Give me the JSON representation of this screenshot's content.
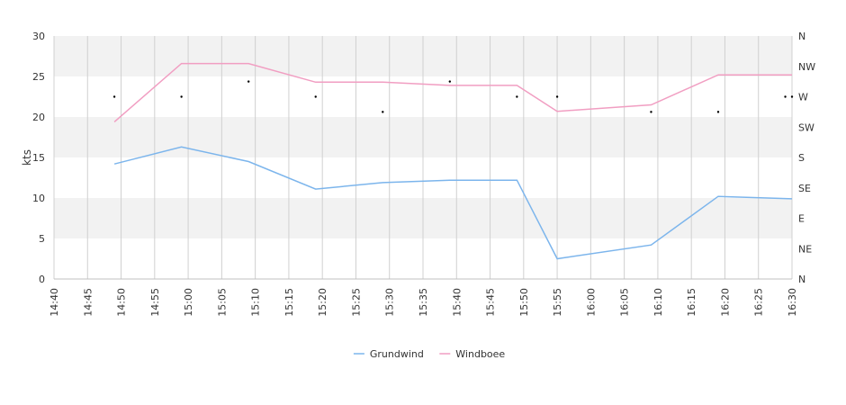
{
  "chart_data": {
    "type": "line",
    "ylabel": "kts",
    "ylim": [
      0,
      30
    ],
    "y_ticks": [
      0,
      5,
      10,
      15,
      20,
      25,
      30
    ],
    "x_ticks": [
      "14:40",
      "14:45",
      "14:50",
      "14:55",
      "15:00",
      "15:05",
      "15:10",
      "15:15",
      "15:20",
      "15:25",
      "15:30",
      "15:35",
      "15:40",
      "15:45",
      "15:50",
      "15:55",
      "16:00",
      "16:05",
      "16:10",
      "16:15",
      "16:20",
      "16:25",
      "16:30"
    ],
    "x_range": [
      "14:40",
      "16:30"
    ],
    "direction_axis_labels": [
      "N",
      "NW",
      "W",
      "SW",
      "S",
      "SE",
      "E",
      "NE",
      "N"
    ],
    "grid": true,
    "legend_position": "bottom-center",
    "series": [
      {
        "name": "Grundwind",
        "color": "#7cb5ec",
        "x": [
          "14:49",
          "14:59",
          "15:09",
          "15:19",
          "15:29",
          "15:39",
          "15:49",
          "15:55",
          "16:09",
          "16:19",
          "16:30"
        ],
        "values": [
          14.2,
          16.3,
          14.5,
          11.1,
          11.9,
          12.2,
          12.2,
          2.5,
          4.2,
          10.2,
          9.9
        ]
      },
      {
        "name": "Windboee",
        "color": "#f19ec2",
        "x": [
          "14:49",
          "14:59",
          "15:09",
          "15:19",
          "15:29",
          "15:39",
          "15:49",
          "15:55",
          "16:09",
          "16:19",
          "16:30"
        ],
        "values": [
          19.4,
          26.6,
          26.6,
          24.3,
          24.3,
          23.9,
          23.9,
          20.7,
          21.5,
          25.2,
          25.2
        ]
      }
    ],
    "direction_markers": {
      "x": [
        "14:49",
        "14:59",
        "15:09",
        "15:19",
        "15:29",
        "15:39",
        "15:49",
        "15:55",
        "16:09",
        "16:19",
        "16:29",
        "16:30"
      ],
      "direction_values": [
        270,
        270,
        292.5,
        270,
        247.5,
        292.5,
        270,
        270,
        247.5,
        247.5,
        270,
        270
      ]
    }
  }
}
